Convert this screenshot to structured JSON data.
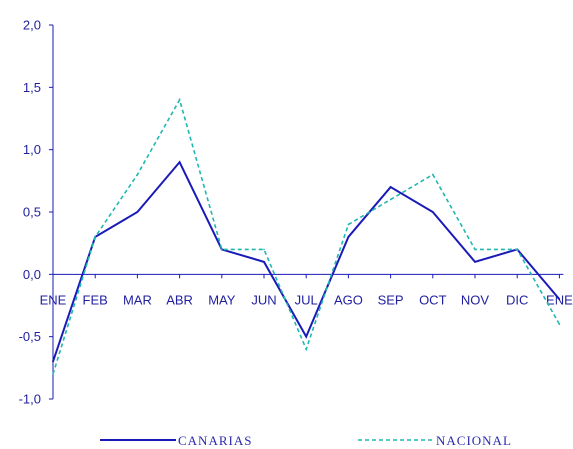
{
  "chart_data": {
    "type": "line",
    "categories": [
      "ENE",
      "FEB",
      "MAR",
      "ABR",
      "MAY",
      "JUN",
      "JUL",
      "AGO",
      "SEP",
      "OCT",
      "NOV",
      "DIC",
      "ENE"
    ],
    "series": [
      {
        "name": "CANARIAS",
        "color": "#1a1ab8",
        "style": "solid",
        "values": [
          -0.7,
          0.3,
          0.5,
          0.9,
          0.2,
          0.1,
          -0.5,
          0.3,
          0.7,
          0.5,
          0.1,
          0.2,
          -0.2
        ]
      },
      {
        "name": "NACIONAL",
        "color": "#1fb8b0",
        "style": "dashed",
        "values": [
          -0.8,
          0.3,
          0.8,
          1.4,
          0.2,
          0.2,
          -0.6,
          0.4,
          0.6,
          0.8,
          0.2,
          0.2,
          -0.4
        ]
      }
    ],
    "y_ticks": [
      "2,0",
      "1,5",
      "1,0",
      "0,5",
      "0,0",
      "-0,5",
      "-1,0"
    ],
    "ylim": [
      -1.0,
      2.0
    ],
    "grid": false,
    "legend_position": "bottom",
    "title": "",
    "xlabel": "",
    "ylabel": ""
  }
}
